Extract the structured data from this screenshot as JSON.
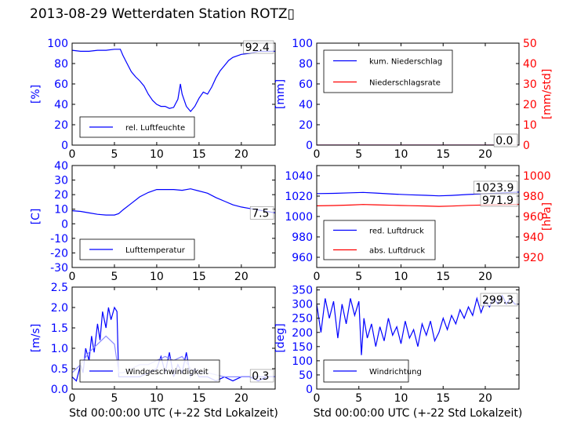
{
  "page": {
    "title": "2013-08-29 Wetterdaten Station ROTZ▯"
  },
  "colors": {
    "primary": "#0000ff",
    "secondary": "#ff0000",
    "light": "#8a8aff",
    "frame": "#000000"
  },
  "chart_data": [
    {
      "type": "line",
      "id": "humidity",
      "xlim": [
        0,
        24
      ],
      "ylim": [
        0,
        100
      ],
      "xticks": [
        0,
        5,
        10,
        15,
        20
      ],
      "yticks": [
        0,
        20,
        40,
        60,
        80,
        100
      ],
      "ylabel": "[%]",
      "ylabel_color": "#0000ff",
      "ytick_color": "#0000ff",
      "xlabel": "",
      "legend": [
        {
          "name": "rel. Luftfeuchte",
          "color": "#0000ff"
        }
      ],
      "series": [
        {
          "name": "rel. Luftfeuchte",
          "color": "#0000ff",
          "x": [
            0,
            1,
            2,
            3,
            4,
            5,
            5.7,
            6.0,
            6.5,
            7,
            7.5,
            8,
            8.5,
            9,
            9.5,
            10,
            10.5,
            11,
            11.5,
            12,
            12.5,
            12.8,
            13,
            13.5,
            14,
            14.5,
            15,
            15.5,
            16,
            16.5,
            17,
            17.5,
            18,
            18.5,
            19,
            20,
            21,
            22,
            23,
            24
          ],
          "y": [
            93,
            92,
            92,
            93,
            93,
            94,
            94,
            88,
            80,
            72,
            67,
            63,
            58,
            50,
            44,
            40,
            38,
            38,
            36,
            37,
            45,
            60,
            50,
            38,
            33,
            38,
            46,
            52,
            50,
            57,
            66,
            73,
            78,
            83,
            86,
            89,
            90,
            92,
            92,
            92
          ]
        }
      ],
      "last_value": "92.4"
    },
    {
      "type": "line",
      "id": "precipitation",
      "xlim": [
        0,
        24
      ],
      "ylim": [
        0,
        100
      ],
      "ylim_right": [
        0,
        50
      ],
      "xticks": [
        0,
        5,
        10,
        15,
        20
      ],
      "yticks": [
        0,
        20,
        40,
        60,
        80,
        100
      ],
      "yticks_right": [
        0,
        10,
        20,
        30,
        40,
        50
      ],
      "ylabel": "[mm]",
      "ylabel_color": "#0000ff",
      "ytick_color": "#0000ff",
      "ylabel_right": "[mm/std]",
      "ylabel_right_color": "#ff0000",
      "xlabel": "",
      "legend": [
        {
          "name": "kum. Niederschlag",
          "color": "#0000ff"
        },
        {
          "name": "Niederschlagsrate",
          "color": "#ff0000"
        }
      ],
      "series": [
        {
          "name": "kum. Niederschlag",
          "color": "#0000ff",
          "x": [
            0,
            24
          ],
          "y": [
            0,
            0
          ]
        },
        {
          "name": "Niederschlagsrate",
          "color": "#ff0000",
          "axis": "right",
          "x": [
            0,
            24
          ],
          "y": [
            0,
            0
          ]
        }
      ],
      "last_value": "0.0",
      "last_value_2": "0.0"
    },
    {
      "type": "line",
      "id": "temperature",
      "xlim": [
        0,
        24
      ],
      "ylim": [
        -30,
        40
      ],
      "xticks": [
        0,
        5,
        10,
        15,
        20
      ],
      "yticks": [
        -30,
        -20,
        -10,
        0,
        10,
        20,
        30,
        40
      ],
      "ylabel": "[C]",
      "ylabel_color": "#0000ff",
      "ytick_color": "#0000ff",
      "xlabel": "",
      "legend": [
        {
          "name": "Lufttemperatur",
          "color": "#0000ff"
        }
      ],
      "series": [
        {
          "name": "Lufttemperatur",
          "color": "#0000ff",
          "x": [
            0,
            1,
            2,
            3,
            4,
            5,
            5.5,
            6,
            7,
            8,
            9,
            10,
            11,
            12,
            13,
            14,
            15,
            16,
            17,
            18,
            19,
            20,
            21,
            22,
            23,
            24
          ],
          "y": [
            9,
            8.5,
            7.5,
            6.5,
            6,
            6,
            7,
            9.5,
            14,
            18.5,
            21.5,
            23.5,
            23.5,
            23.5,
            23,
            24,
            22.5,
            21,
            18,
            15.5,
            13,
            11.5,
            10.5,
            9.5,
            8.5,
            7.5
          ]
        }
      ],
      "last_value": "7.5"
    },
    {
      "type": "line",
      "id": "pressure",
      "xlim": [
        0,
        24
      ],
      "ylim": [
        950,
        1050
      ],
      "ylim_right": [
        910,
        1010
      ],
      "xticks": [
        0,
        5,
        10,
        15,
        20
      ],
      "yticks": [
        960,
        980,
        1000,
        1020,
        1040
      ],
      "yticks_right": [
        920,
        940,
        960,
        980,
        1000
      ],
      "ylabel": "",
      "ytick_color": "#0000ff",
      "ylabel_right": "[hPa]",
      "ylabel_right_color": "#ff0000",
      "xlabel": "",
      "legend": [
        {
          "name": "red. Luftdruck",
          "color": "#0000ff"
        },
        {
          "name": "abs. Luftdruck",
          "color": "#ff0000"
        }
      ],
      "series": [
        {
          "name": "red. Luftdruck",
          "color": "#0000ff",
          "x": [
            0,
            2,
            4,
            5.5,
            7,
            9,
            11,
            13,
            14.5,
            16,
            18,
            20,
            22,
            24
          ],
          "y": [
            1022.5,
            1022.7,
            1023.2,
            1023.6,
            1023,
            1022,
            1021.3,
            1020.8,
            1020.2,
            1020.7,
            1021.6,
            1022.3,
            1023.2,
            1023.9
          ]
        },
        {
          "name": "abs. Luftdruck",
          "color": "#ff0000",
          "axis": "right",
          "x": [
            0,
            2,
            4,
            5.5,
            7,
            9,
            11,
            13,
            14.5,
            16,
            18,
            20,
            22,
            24
          ],
          "y": [
            970.5,
            970.8,
            971.2,
            971.8,
            971.5,
            971,
            970.6,
            970.3,
            969.9,
            970.2,
            970.9,
            971.3,
            971.6,
            971.9
          ]
        }
      ],
      "last_value": "1023.9",
      "last_value_2": "971.9"
    },
    {
      "type": "line",
      "id": "wind_speed",
      "xlim": [
        0,
        24
      ],
      "ylim": [
        0,
        2.5
      ],
      "xticks": [
        0,
        5,
        10,
        15,
        20
      ],
      "yticks": [
        0.0,
        0.5,
        1.0,
        1.5,
        2.0,
        2.5
      ],
      "ytick_decimals": 1,
      "ylabel": "[m/s]",
      "ylabel_color": "#0000ff",
      "ytick_color": "#0000ff",
      "xlabel": "Std 00:00:00 UTC (+-22 Std Lokalzeit)",
      "legend": [
        {
          "name": "Windgeschwindigkeit",
          "color": "#0000ff"
        }
      ],
      "series": [
        {
          "name": "Windgeschwindigkeit",
          "color": "#0000ff",
          "x": [
            0,
            0.5,
            1,
            1.3,
            1.6,
            2,
            2.3,
            2.6,
            3,
            3.3,
            3.6,
            4,
            4.3,
            4.6,
            5,
            5.3,
            5.5,
            6,
            7,
            8,
            9,
            10,
            10.5,
            11,
            11.5,
            12,
            12.5,
            13,
            13.5,
            14,
            14.5,
            15,
            16,
            17,
            18,
            19,
            20,
            21,
            22,
            23,
            24
          ],
          "y": [
            0.3,
            0.2,
            0.6,
            0.4,
            1.0,
            0.7,
            1.3,
            0.9,
            1.6,
            1.2,
            1.9,
            1.5,
            2.0,
            1.7,
            2.0,
            1.9,
            0.3,
            0.3,
            0.3,
            0.3,
            0.4,
            0.5,
            0.8,
            0.4,
            0.9,
            0.3,
            0.6,
            0.4,
            0.9,
            0.3,
            0.5,
            0.3,
            0.3,
            0.2,
            0.3,
            0.2,
            0.3,
            0.3,
            0.2,
            0.3,
            0.3
          ]
        },
        {
          "name": "Windgeschwindigkeit (gusts)",
          "color": "#8a8aff",
          "x": [
            0,
            1,
            2,
            3,
            4,
            5,
            5.5,
            6,
            7,
            8,
            9,
            10,
            11,
            12,
            13,
            14,
            15,
            16,
            18,
            20,
            22,
            24
          ],
          "y": [
            0.4,
            0.6,
            0.9,
            1.1,
            1.3,
            1.1,
            0.4,
            0.4,
            0.5,
            0.6,
            0.6,
            0.7,
            0.8,
            0.7,
            0.8,
            0.5,
            0.4,
            0.4,
            0.3,
            0.3,
            0.3,
            0.3
          ]
        }
      ],
      "last_value": "0.3"
    },
    {
      "type": "line",
      "id": "wind_direction",
      "xlim": [
        0,
        24
      ],
      "ylim": [
        0,
        360
      ],
      "xticks": [
        0,
        5,
        10,
        15,
        20
      ],
      "yticks": [
        0,
        50,
        100,
        150,
        200,
        250,
        300,
        350
      ],
      "ylabel": "[deg]",
      "ylabel_color": "#0000ff",
      "ytick_color": "#0000ff",
      "xlabel": "Std 00:00:00 UTC (+-22 Std Lokalzeit)",
      "legend": [
        {
          "name": "Windrichtung",
          "color": "#0000ff"
        }
      ],
      "series": [
        {
          "name": "Windrichtung",
          "color": "#0000ff",
          "x": [
            0,
            0.5,
            1,
            1.5,
            2,
            2.5,
            3,
            3.5,
            4,
            4.5,
            5,
            5.3,
            5.6,
            6,
            6.5,
            7,
            7.5,
            8,
            8.5,
            9,
            9.5,
            10,
            10.5,
            11,
            11.5,
            12,
            12.5,
            13,
            13.5,
            14,
            14.5,
            15,
            15.5,
            16,
            16.5,
            17,
            17.5,
            18,
            18.5,
            19,
            19.5,
            20,
            20.5,
            21,
            21.5,
            22,
            22.5,
            23,
            23.5,
            24
          ],
          "y": [
            300,
            200,
            320,
            250,
            310,
            180,
            300,
            230,
            320,
            260,
            310,
            120,
            250,
            180,
            230,
            150,
            220,
            170,
            250,
            190,
            220,
            160,
            240,
            180,
            210,
            150,
            230,
            190,
            240,
            170,
            200,
            250,
            210,
            260,
            230,
            280,
            250,
            290,
            260,
            320,
            270,
            310,
            290,
            320,
            300,
            330,
            300,
            320,
            300,
            300
          ]
        }
      ],
      "last_value": "299.3"
    }
  ]
}
